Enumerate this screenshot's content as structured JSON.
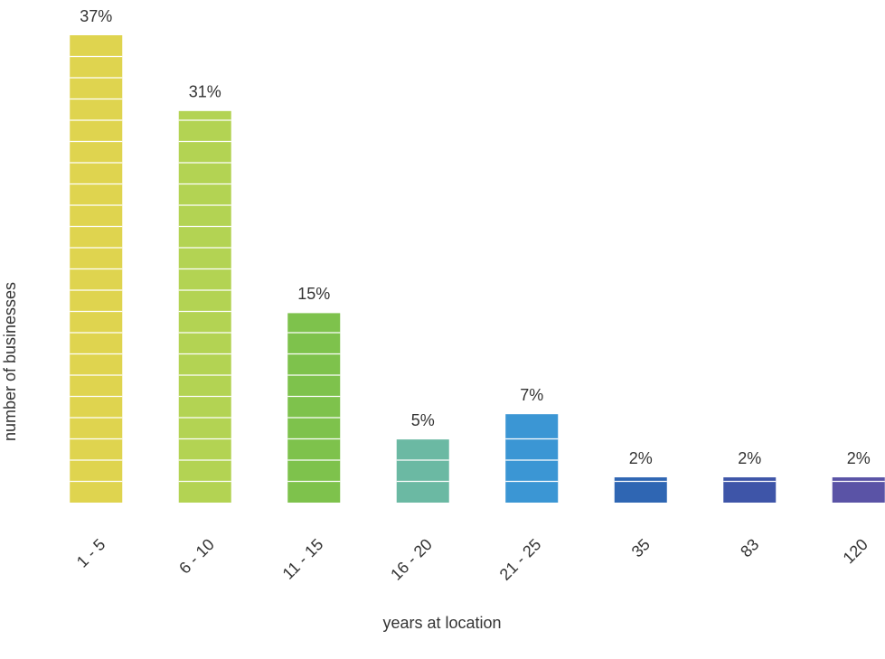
{
  "chart_data": {
    "type": "bar",
    "x_label": "years at location",
    "y_label": "number of businesses",
    "categories": [
      "1 - 5",
      "6 - 10",
      "11 - 15",
      "16 - 20",
      "21 - 25",
      "35",
      "83",
      "120"
    ],
    "values": [
      37,
      31,
      15,
      5,
      7,
      2,
      2,
      2
    ],
    "value_labels": [
      "37%",
      "31%",
      "15%",
      "5%",
      "7%",
      "2%",
      "2%",
      "2%"
    ],
    "colors": [
      "#dfd44f",
      "#b3d353",
      "#7ec24c",
      "#6bb9a3",
      "#3b96d4",
      "#2f66b3",
      "#3e55a8",
      "#5a53a6"
    ]
  }
}
